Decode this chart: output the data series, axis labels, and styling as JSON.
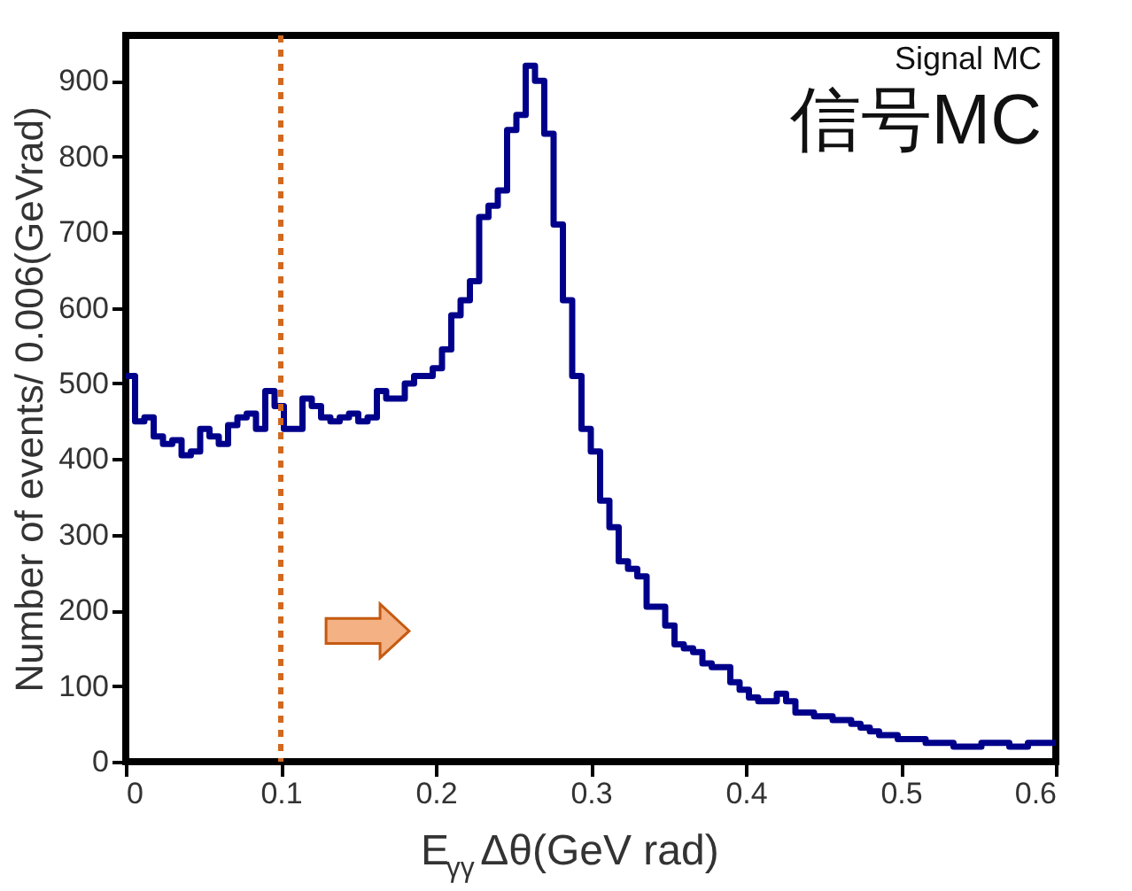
{
  "chart_data": {
    "type": "histogram",
    "xlabel": "E$_{γγ}$Δθ(GeV rad)",
    "ylabel": "Number of events/ 0.006(GeVrad)",
    "bins": [
      0,
      0.006,
      0.012,
      0.018,
      0.024,
      0.03,
      0.036,
      0.042,
      0.048,
      0.054,
      0.06,
      0.066,
      0.072,
      0.078,
      0.084,
      0.09,
      0.096,
      0.102,
      0.108,
      0.114,
      0.12,
      0.126,
      0.132,
      0.138,
      0.144,
      0.15,
      0.156,
      0.162,
      0.168,
      0.174,
      0.18,
      0.186,
      0.192,
      0.198,
      0.204,
      0.21,
      0.216,
      0.222,
      0.228,
      0.234,
      0.24,
      0.246,
      0.252,
      0.258,
      0.264,
      0.27,
      0.276,
      0.282,
      0.288,
      0.294,
      0.3,
      0.306,
      0.312,
      0.318,
      0.324,
      0.33,
      0.336,
      0.342,
      0.348,
      0.354,
      0.36,
      0.366,
      0.372,
      0.378,
      0.384,
      0.39,
      0.396,
      0.402,
      0.408,
      0.414,
      0.42,
      0.426,
      0.432,
      0.438,
      0.444,
      0.45,
      0.456,
      0.462,
      0.468,
      0.474,
      0.48,
      0.486,
      0.492,
      0.498,
      0.504,
      0.51,
      0.516,
      0.522,
      0.528,
      0.534,
      0.54,
      0.546,
      0.552,
      0.558,
      0.564,
      0.57,
      0.576,
      0.582,
      0.588,
      0.594,
      0.6
    ],
    "values": [
      510,
      450,
      455,
      430,
      420,
      425,
      405,
      410,
      440,
      430,
      420,
      445,
      455,
      460,
      440,
      490,
      470,
      440,
      440,
      480,
      470,
      455,
      450,
      455,
      460,
      450,
      455,
      490,
      480,
      480,
      500,
      510,
      510,
      520,
      545,
      590,
      610,
      635,
      720,
      735,
      755,
      835,
      855,
      920,
      900,
      830,
      710,
      610,
      510,
      440,
      410,
      345,
      310,
      265,
      255,
      245,
      205,
      205,
      180,
      155,
      150,
      145,
      130,
      125,
      125,
      105,
      95,
      85,
      80,
      80,
      90,
      80,
      65,
      65,
      60,
      60,
      55,
      55,
      50,
      45,
      40,
      35,
      35,
      30,
      30,
      30,
      25,
      25,
      25,
      20,
      20,
      20,
      25,
      25,
      25,
      20,
      20,
      25,
      25,
      25
    ],
    "color": "#00008b",
    "xlim": [
      0,
      0.6
    ],
    "xticks": [
      0,
      0.1,
      0.2,
      0.3,
      0.4,
      0.5,
      0.6
    ],
    "ylim": [
      0,
      960
    ],
    "yticks": [
      0,
      100,
      200,
      300,
      400,
      500,
      600,
      700,
      800,
      900
    ],
    "ref_lines": [
      {
        "axis": "x",
        "value": 0.1,
        "color": "#d2691e",
        "line_style": "dotted"
      }
    ],
    "annotations": [
      "Signal MC",
      "信号MC"
    ],
    "grid": false
  }
}
